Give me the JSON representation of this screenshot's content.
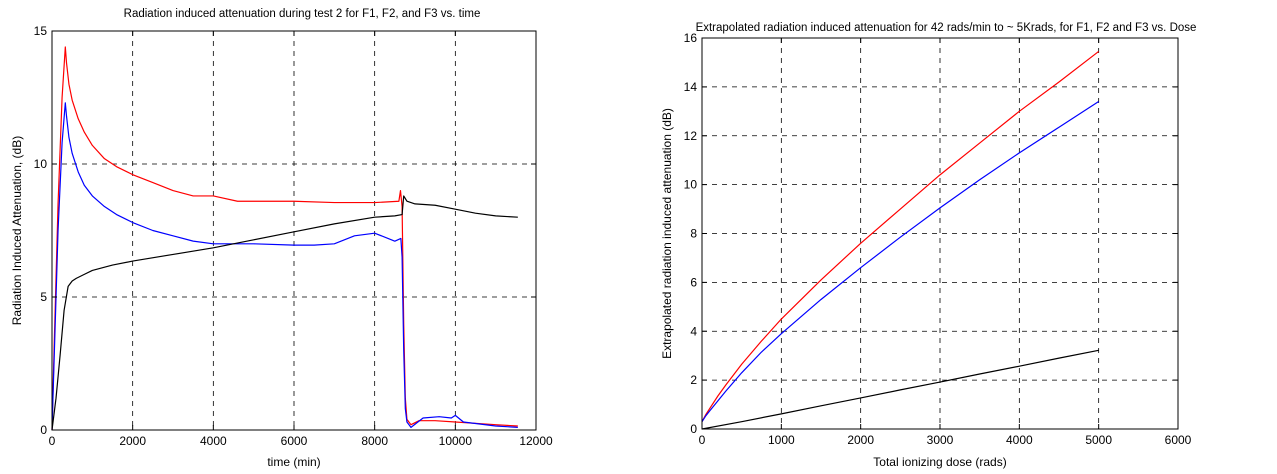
{
  "chart_data": [
    {
      "type": "line",
      "title": "Radiation induced attenuation during test 2 for F1, F2, and F3 vs. time",
      "xlabel": "time (min)",
      "ylabel": "Radiation Induced Attenuation, (dB)",
      "xlim": [
        0,
        12000
      ],
      "ylim": [
        0,
        15
      ],
      "xticks": [
        0,
        2000,
        4000,
        6000,
        8000,
        10000,
        12000
      ],
      "yticks": [
        0,
        5,
        10,
        15
      ],
      "grid": true,
      "series": [
        {
          "color": "#ff0000",
          "x": [
            0,
            60,
            150,
            250,
            330,
            360,
            420,
            500,
            650,
            800,
            1000,
            1300,
            1600,
            2000,
            2500,
            3000,
            3500,
            4000,
            4600,
            5000,
            6000,
            7000,
            8000,
            8600,
            8640,
            8680,
            8720,
            8760,
            8800,
            8900,
            9100,
            9500,
            10000,
            11000,
            11550
          ],
          "y": [
            0,
            3.5,
            8.5,
            12.5,
            14.4,
            13.8,
            13.0,
            12.4,
            11.7,
            11.2,
            10.7,
            10.2,
            9.9,
            9.6,
            9.3,
            9.0,
            8.8,
            8.8,
            8.6,
            8.6,
            8.6,
            8.55,
            8.55,
            8.6,
            9.0,
            8.4,
            4.0,
            1.2,
            0.4,
            0.2,
            0.35,
            0.35,
            0.3,
            0.2,
            0.15
          ]
        },
        {
          "color": "#0000ff",
          "x": [
            0,
            60,
            150,
            250,
            330,
            360,
            420,
            500,
            650,
            800,
            1000,
            1300,
            1600,
            2000,
            2500,
            3000,
            3500,
            4000,
            5000,
            6000,
            6500,
            7000,
            7500,
            8000,
            8500,
            8650,
            8680,
            8720,
            8760,
            8800,
            8900,
            9200,
            9600,
            9900,
            10000,
            10200,
            11000,
            11550
          ],
          "y": [
            0,
            3.0,
            7.5,
            10.8,
            12.3,
            11.8,
            11.0,
            10.4,
            9.7,
            9.2,
            8.8,
            8.4,
            8.1,
            7.8,
            7.5,
            7.3,
            7.1,
            7.0,
            7.0,
            6.95,
            6.95,
            7.0,
            7.3,
            7.4,
            7.1,
            7.2,
            6.5,
            3.0,
            0.8,
            0.3,
            0.1,
            0.45,
            0.5,
            0.45,
            0.55,
            0.3,
            0.15,
            0.1
          ]
        },
        {
          "color": "#000000",
          "x": [
            0,
            100,
            200,
            300,
            400,
            500,
            600,
            800,
            1000,
            1500,
            2000,
            3000,
            4000,
            5000,
            6000,
            7000,
            8000,
            8500,
            8680,
            8720,
            8800,
            9000,
            9500,
            10000,
            10500,
            11000,
            11550
          ],
          "y": [
            0,
            1.2,
            2.8,
            4.5,
            5.4,
            5.6,
            5.7,
            5.85,
            6.0,
            6.2,
            6.35,
            6.6,
            6.85,
            7.15,
            7.45,
            7.75,
            8.0,
            8.05,
            8.1,
            8.8,
            8.6,
            8.5,
            8.45,
            8.3,
            8.15,
            8.05,
            8.0
          ]
        }
      ]
    },
    {
      "type": "line",
      "title": "Extrapolated radiation induced attenuation for 42 rads/min to ~ 5Krads, for F1, F2 and F3 vs. Dose",
      "xlabel": "Total ionizing dose (rads)",
      "ylabel": "Extrapolated radiation induced attenuation (dB)",
      "xlim": [
        0,
        6000
      ],
      "ylim": [
        0,
        16
      ],
      "xticks": [
        0,
        1000,
        2000,
        3000,
        4000,
        5000,
        6000
      ],
      "yticks": [
        0,
        2,
        4,
        6,
        8,
        10,
        12,
        14,
        16
      ],
      "grid": true,
      "series": [
        {
          "color": "#ff0000",
          "x": [
            0,
            50,
            100,
            200,
            300,
            500,
            750,
            1000,
            1500,
            2000,
            2500,
            3000,
            3500,
            4000,
            4500,
            5000
          ],
          "y": [
            0.3,
            0.6,
            0.85,
            1.35,
            1.8,
            2.65,
            3.6,
            4.5,
            6.1,
            7.6,
            9.0,
            10.4,
            11.7,
            13.0,
            14.2,
            15.45
          ]
        },
        {
          "color": "#0000ff",
          "x": [
            0,
            50,
            100,
            200,
            300,
            500,
            750,
            1000,
            1500,
            2000,
            2500,
            3000,
            3500,
            4000,
            4500,
            5000
          ],
          "y": [
            0.3,
            0.55,
            0.75,
            1.15,
            1.55,
            2.3,
            3.15,
            3.9,
            5.3,
            6.6,
            7.85,
            9.05,
            10.2,
            11.3,
            12.35,
            13.4
          ]
        },
        {
          "color": "#000000",
          "x": [
            0,
            500,
            1000,
            1500,
            2000,
            2500,
            3000,
            3500,
            4000,
            4500,
            5000
          ],
          "y": [
            0,
            0.3,
            0.62,
            0.95,
            1.27,
            1.6,
            1.92,
            2.25,
            2.57,
            2.9,
            3.22
          ]
        }
      ]
    }
  ]
}
